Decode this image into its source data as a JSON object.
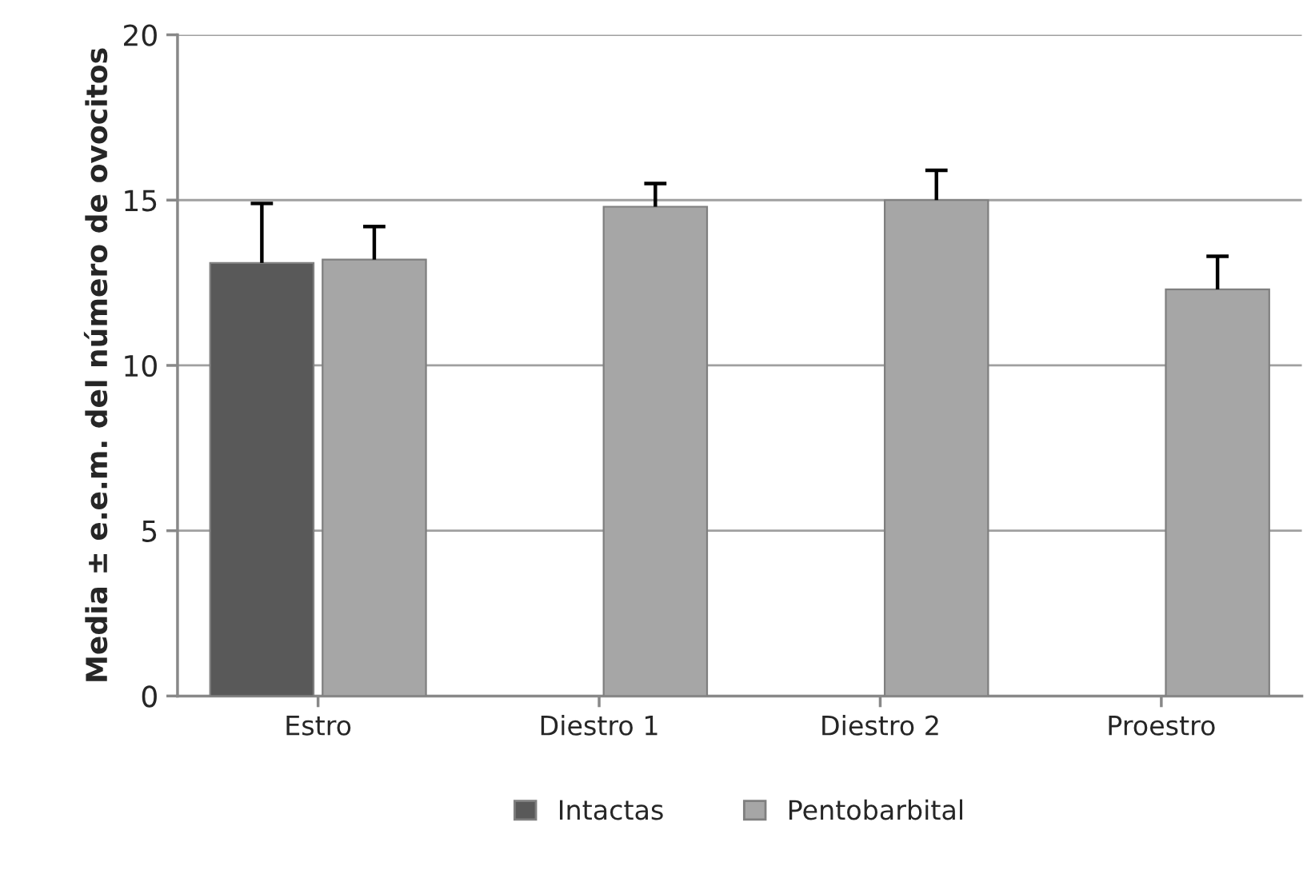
{
  "chart_data": {
    "type": "bar",
    "ylabel": "Media ± e.e.m. del número de ovocitos",
    "categories": [
      "Estro",
      "Diestro 1",
      "Diestro 2",
      "Proestro"
    ],
    "series": [
      {
        "name": "Intactas",
        "color": "#595959",
        "values": [
          13.1,
          null,
          null,
          null
        ],
        "errors": [
          [
            13.1,
            14.9
          ],
          null,
          null,
          null
        ]
      },
      {
        "name": "Pentobarbital",
        "color": "#a6a6a6",
        "values": [
          13.2,
          14.8,
          15.0,
          12.3
        ],
        "errors": [
          [
            13.2,
            14.2
          ],
          [
            14.8,
            15.5
          ],
          [
            15.0,
            15.9
          ],
          [
            12.3,
            13.3
          ]
        ]
      }
    ],
    "ylim": [
      0,
      20
    ],
    "yticks": [
      0,
      5,
      10,
      15,
      20
    ],
    "grid": "y",
    "legend": "bottom"
  }
}
